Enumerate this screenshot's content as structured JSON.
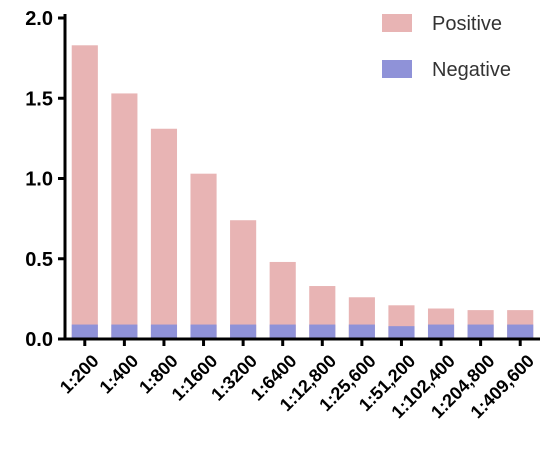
{
  "chart_data": {
    "type": "bar",
    "stacked": "overlay",
    "categories": [
      "1:200",
      "1:400",
      "1:800",
      "1:1600",
      "1:3200",
      "1:6400",
      "1:12,800",
      "1:25,600",
      "1:51,200",
      "1:102,400",
      "1:204,800",
      "1:409,600"
    ],
    "series": [
      {
        "name": "Positive",
        "color": "#e8b4b4",
        "values": [
          1.83,
          1.53,
          1.31,
          1.03,
          0.74,
          0.48,
          0.33,
          0.26,
          0.21,
          0.19,
          0.18,
          0.18
        ]
      },
      {
        "name": "Negative",
        "color": "#8f92d8",
        "values": [
          0.09,
          0.09,
          0.09,
          0.09,
          0.09,
          0.09,
          0.09,
          0.09,
          0.08,
          0.09,
          0.09,
          0.09
        ]
      }
    ],
    "y_ticks": [
      "0.0",
      "0.5",
      "1.0",
      "1.5",
      "2.0"
    ],
    "ylim": [
      0,
      2.0
    ],
    "legend_position": "top-right",
    "grid": false
  }
}
